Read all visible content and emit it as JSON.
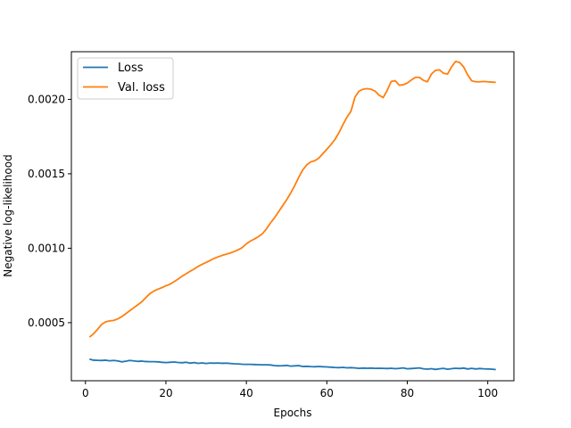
{
  "chart_data": {
    "type": "line",
    "xlabel": "Epochs",
    "ylabel": "Negative log-likelihood",
    "xlim": [
      -3.5,
      106.5
    ],
    "ylim": [
      0.00011,
      0.00232
    ],
    "xticks": [
      {
        "value": 0,
        "label": "0"
      },
      {
        "value": 20,
        "label": "20"
      },
      {
        "value": 40,
        "label": "40"
      },
      {
        "value": 60,
        "label": "60"
      },
      {
        "value": 80,
        "label": "80"
      },
      {
        "value": 100,
        "label": "100"
      }
    ],
    "yticks": [
      {
        "value": 0.0005,
        "label": "0.0005"
      },
      {
        "value": 0.001,
        "label": "0.0010"
      },
      {
        "value": 0.0015,
        "label": "0.0015"
      },
      {
        "value": 0.002,
        "label": "0.0020"
      }
    ],
    "legend_position": "top-left",
    "series": [
      {
        "name": "Loss",
        "color": "#1f77b4",
        "x": [
          1,
          2,
          3,
          4,
          5,
          6,
          7,
          8,
          9,
          10,
          11,
          12,
          13,
          14,
          15,
          16,
          17,
          18,
          19,
          20,
          21,
          22,
          23,
          24,
          25,
          26,
          27,
          28,
          29,
          30,
          31,
          32,
          33,
          34,
          35,
          36,
          37,
          38,
          39,
          40,
          41,
          42,
          43,
          44,
          45,
          46,
          47,
          48,
          49,
          50,
          51,
          52,
          53,
          54,
          55,
          56,
          57,
          58,
          59,
          60,
          61,
          62,
          63,
          64,
          65,
          66,
          67,
          68,
          69,
          70,
          71,
          72,
          73,
          74,
          75,
          76,
          77,
          78,
          79,
          80,
          81,
          82,
          83,
          84,
          85,
          86,
          87,
          88,
          89,
          90,
          91,
          92,
          93,
          94,
          95,
          96,
          97,
          98,
          99,
          100,
          101,
          102
        ],
        "y": [
          0.000255,
          0.000248,
          0.000247,
          0.000246,
          0.000248,
          0.000244,
          0.000246,
          0.000243,
          0.000237,
          0.000241,
          0.000246,
          0.000243,
          0.00024,
          0.000242,
          0.000239,
          0.000238,
          0.000238,
          0.000237,
          0.000234,
          0.000232,
          0.000234,
          0.000236,
          0.000233,
          0.000231,
          0.000234,
          0.000228,
          0.000232,
          0.000227,
          0.00023,
          0.000226,
          0.000229,
          0.000228,
          0.000229,
          0.000227,
          0.000228,
          0.000226,
          0.000224,
          0.000223,
          0.000221,
          0.00022,
          0.00022,
          0.000219,
          0.000218,
          0.000217,
          0.000217,
          0.000216,
          0.000212,
          0.00021,
          0.000211,
          0.000213,
          0.000208,
          0.00021,
          0.000212,
          0.000206,
          0.000207,
          0.000205,
          0.000204,
          0.000206,
          0.000204,
          0.000203,
          0.000201,
          0.000199,
          0.000198,
          0.0002,
          0.000197,
          0.000198,
          0.000196,
          0.000193,
          0.000195,
          0.000194,
          0.000195,
          0.000193,
          0.000194,
          0.000193,
          0.000192,
          0.000194,
          0.000191,
          0.000193,
          0.000196,
          0.00019,
          0.000192,
          0.000194,
          0.000196,
          0.00019,
          0.000188,
          0.000191,
          0.000186,
          0.00019,
          0.000193,
          0.000187,
          0.000191,
          0.000194,
          0.000192,
          0.000195,
          0.000189,
          0.000193,
          0.000189,
          0.000192,
          0.00019,
          0.000189,
          0.000188,
          0.000185
        ]
      },
      {
        "name": "Val. loss",
        "color": "#ff7f0e",
        "x": [
          1,
          2,
          3,
          4,
          5,
          6,
          7,
          8,
          9,
          10,
          11,
          12,
          13,
          14,
          15,
          16,
          17,
          18,
          19,
          20,
          21,
          22,
          23,
          24,
          25,
          26,
          27,
          28,
          29,
          30,
          31,
          32,
          33,
          34,
          35,
          36,
          37,
          38,
          39,
          40,
          41,
          42,
          43,
          44,
          45,
          46,
          47,
          48,
          49,
          50,
          51,
          52,
          53,
          54,
          55,
          56,
          57,
          58,
          59,
          60,
          61,
          62,
          63,
          64,
          65,
          66,
          67,
          68,
          69,
          70,
          71,
          72,
          73,
          74,
          75,
          76,
          77,
          78,
          79,
          80,
          81,
          82,
          83,
          84,
          85,
          86,
          87,
          88,
          89,
          90,
          91,
          92,
          93,
          94,
          95,
          96,
          97,
          98,
          99,
          100,
          101,
          102
        ],
        "y": [
          0.000403,
          0.000425,
          0.000455,
          0.000488,
          0.000505,
          0.000512,
          0.000515,
          0.000525,
          0.00054,
          0.00056,
          0.00058,
          0.0006,
          0.00062,
          0.00064,
          0.000668,
          0.000695,
          0.000712,
          0.000725,
          0.000735,
          0.000748,
          0.000758,
          0.000775,
          0.000792,
          0.000812,
          0.000828,
          0.000845,
          0.00086,
          0.000878,
          0.000892,
          0.000905,
          0.000918,
          0.000932,
          0.000942,
          0.000952,
          0.00096,
          0.000968,
          0.000978,
          0.00099,
          0.001005,
          0.00103,
          0.001048,
          0.001062,
          0.001078,
          0.001098,
          0.00113,
          0.00117,
          0.001205,
          0.001245,
          0.001285,
          0.001325,
          0.00137,
          0.00142,
          0.001475,
          0.001525,
          0.00156,
          0.00158,
          0.001588,
          0.001605,
          0.001635,
          0.001665,
          0.001695,
          0.00173,
          0.001775,
          0.00183,
          0.00188,
          0.00192,
          0.002015,
          0.002055,
          0.002068,
          0.002072,
          0.002068,
          0.002055,
          0.002028,
          0.002012,
          0.00206,
          0.00212,
          0.002125,
          0.002095,
          0.002098,
          0.00211,
          0.00213,
          0.002148,
          0.002148,
          0.002128,
          0.002118,
          0.00217,
          0.002195,
          0.002198,
          0.002175,
          0.00217,
          0.002218,
          0.002255,
          0.002248,
          0.002218,
          0.002165,
          0.002125,
          0.002118,
          0.002118,
          0.00212,
          0.002118,
          0.002116,
          0.002114
        ]
      }
    ]
  }
}
